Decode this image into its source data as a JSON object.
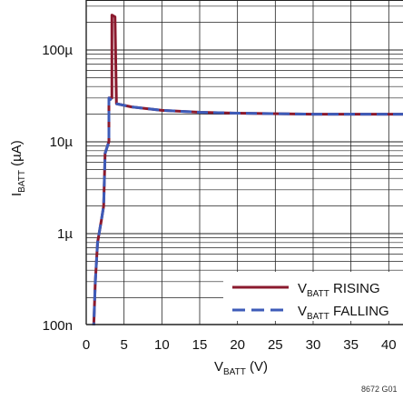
{
  "chart_data": {
    "type": "line",
    "xlabel": {
      "main": "V",
      "sub": "BATT",
      "unit": " (V)"
    },
    "ylabel": {
      "main": "I",
      "sub": "BATT",
      "unit": " (µA)"
    },
    "x_ticks": [
      "0",
      "5",
      "10",
      "15",
      "20",
      "25",
      "30",
      "35",
      "40"
    ],
    "y_ticks": [
      "100n",
      "1µ",
      "10µ",
      "100µ"
    ],
    "xlim": [
      0,
      42
    ],
    "ylim": [
      0.1,
      300
    ],
    "y_scale": "log",
    "grid": true,
    "legend_position": "bottom-right",
    "figure_code": "8672 G01",
    "series": [
      {
        "name_main": "V",
        "name_sub": "BATT",
        "name_suffix": " RISING",
        "color": "#8b1a2e",
        "style": "solid",
        "points": [
          [
            1.0,
            0.1
          ],
          [
            1.2,
            0.3
          ],
          [
            1.5,
            0.8
          ],
          [
            2.0,
            1.4
          ],
          [
            2.3,
            2.0
          ],
          [
            2.5,
            7.5
          ],
          [
            2.9,
            9.5
          ],
          [
            3.0,
            10
          ],
          [
            3.0,
            30
          ],
          [
            3.4,
            30
          ],
          [
            3.4,
            240
          ],
          [
            3.8,
            230
          ],
          [
            4.0,
            26
          ],
          [
            6.0,
            24
          ],
          [
            10.0,
            22
          ],
          [
            15.0,
            21
          ],
          [
            20.0,
            20.5
          ],
          [
            30.0,
            20
          ],
          [
            40.0,
            20
          ],
          [
            42.0,
            20
          ]
        ]
      },
      {
        "name_main": "V",
        "name_sub": "BATT",
        "name_suffix": " FALLING",
        "color": "#3d5bb8",
        "style": "dashed",
        "points": [
          [
            42.0,
            20
          ],
          [
            40.0,
            20
          ],
          [
            30.0,
            20
          ],
          [
            20.0,
            20.5
          ],
          [
            15.0,
            21
          ],
          [
            10.0,
            22
          ],
          [
            6.0,
            24
          ],
          [
            4.0,
            26
          ],
          [
            3.0,
            30
          ],
          [
            3.0,
            10
          ],
          [
            2.9,
            9.5
          ],
          [
            2.5,
            7.5
          ],
          [
            2.3,
            2.0
          ],
          [
            2.0,
            1.4
          ],
          [
            1.5,
            0.8
          ],
          [
            1.2,
            0.3
          ],
          [
            1.0,
            0.1
          ]
        ]
      }
    ]
  }
}
